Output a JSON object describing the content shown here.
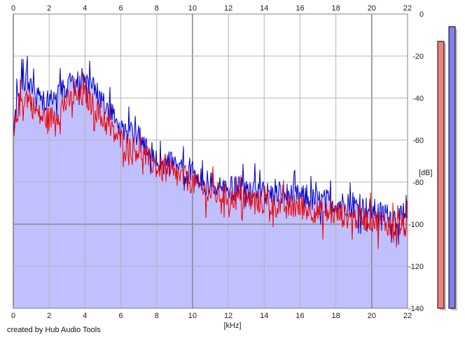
{
  "app": {
    "credit": "created by Hub Audio Tools"
  },
  "colors": {
    "fill": "#c0c0ff",
    "channel_left": "#0000cc",
    "channel_right": "#ee0000",
    "grid": "#b4b4b4",
    "grid_major": "#8a8a8a",
    "meter_left_fill": "#f08080",
    "meter_right_fill": "#8080f0"
  },
  "chart_data": {
    "type": "line",
    "title": "",
    "xlabel": "[kHz]",
    "ylabel": "[dB]",
    "xlim": [
      0,
      22
    ],
    "ylim": [
      -140,
      0
    ],
    "x_ticks": [
      "0",
      "2",
      "4",
      "6",
      "8",
      "10",
      "12",
      "14",
      "16",
      "18",
      "20",
      "22"
    ],
    "y_ticks": [
      "0",
      "-20",
      "-40",
      "-60",
      "-80",
      "-100",
      "-120",
      "-140"
    ],
    "grid": true,
    "legend": "none",
    "x": [
      0,
      0.25,
      0.5,
      0.75,
      1,
      1.5,
      2,
      2.5,
      3,
      3.5,
      4,
      4.5,
      5,
      5.5,
      6,
      6.5,
      7,
      7.5,
      8,
      8.5,
      9,
      9.5,
      10,
      10.5,
      11,
      11.5,
      12,
      12.5,
      13,
      13.5,
      14,
      14.5,
      15,
      15.5,
      16,
      16.5,
      17,
      17.5,
      18,
      18.5,
      19,
      19.5,
      20,
      20.5,
      21,
      21.5,
      22
    ],
    "series": [
      {
        "values": [
          -55,
          -38,
          -33,
          -30,
          -36,
          -41,
          -40,
          -39,
          -34,
          -32,
          -31,
          -36,
          -42,
          -47,
          -53,
          -57,
          -59,
          -64,
          -69,
          -71,
          -72,
          -73,
          -74,
          -78,
          -81,
          -82,
          -83,
          -83,
          -84,
          -83,
          -85,
          -86,
          -86,
          -86,
          -87,
          -88,
          -89,
          -89,
          -90,
          -90,
          -91,
          -92,
          -93,
          -95,
          -96,
          -97,
          -98
        ]
      },
      {
        "values": [
          -60,
          -45,
          -41,
          -39,
          -43,
          -49,
          -50,
          -47,
          -42,
          -40,
          -39,
          -44,
          -50,
          -56,
          -60,
          -63,
          -65,
          -69,
          -73,
          -75,
          -77,
          -78,
          -80,
          -83,
          -85,
          -86,
          -87,
          -88,
          -89,
          -89,
          -90,
          -91,
          -91,
          -92,
          -92,
          -93,
          -94,
          -95,
          -95,
          -96,
          -97,
          -97,
          -98,
          -99,
          -100,
          -101,
          -101
        ]
      }
    ],
    "level_meters": {
      "ylim": [
        -140,
        0
      ],
      "values": [
        -13,
        -6
      ]
    }
  }
}
